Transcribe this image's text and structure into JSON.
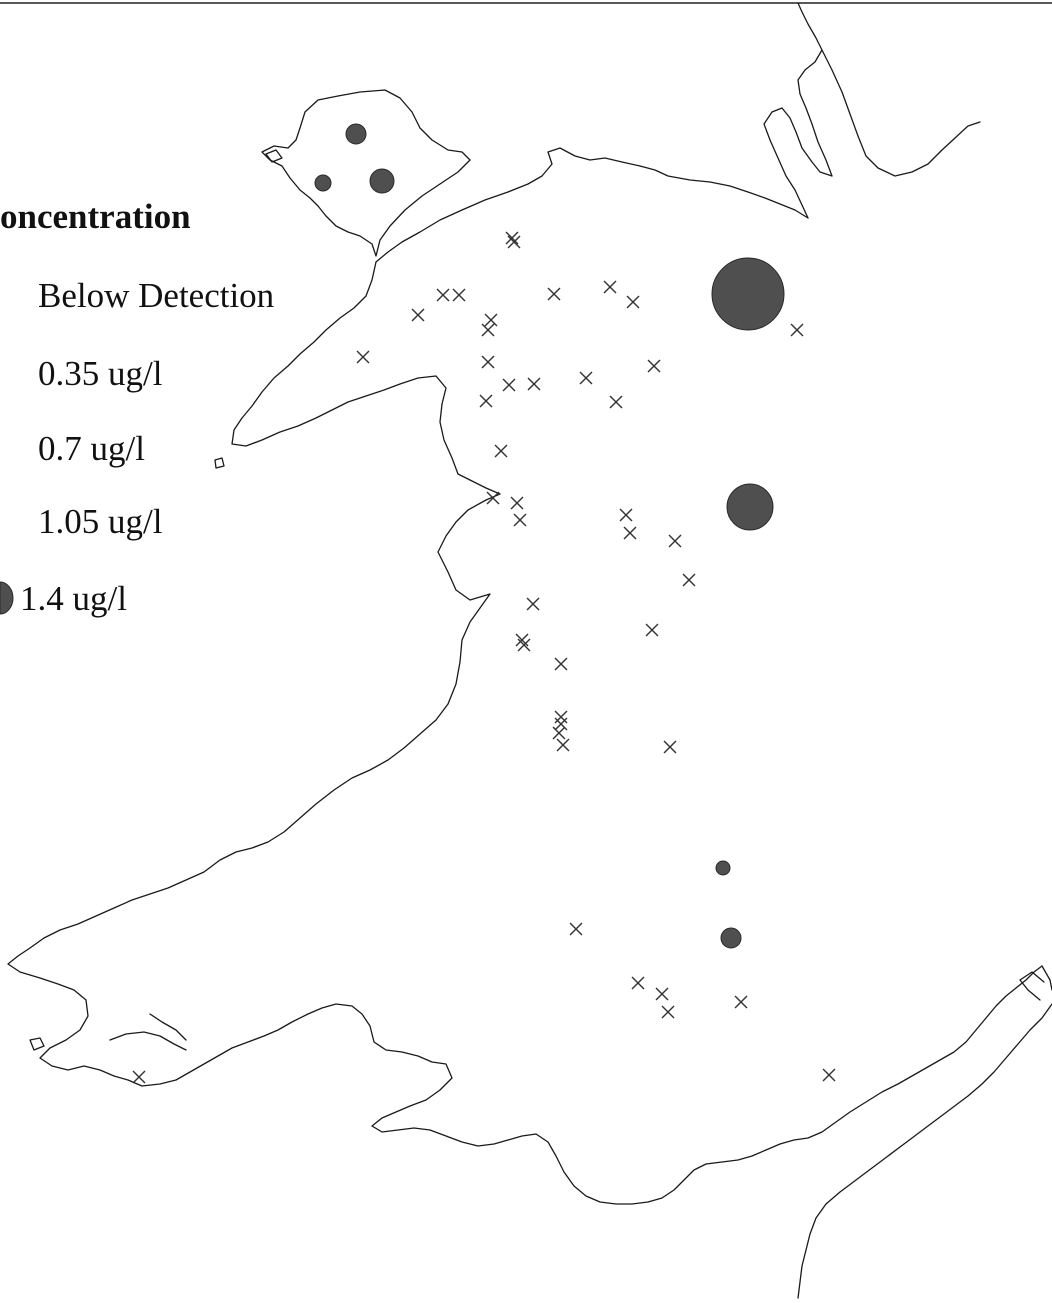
{
  "legend": {
    "title": "oncentration",
    "items": [
      {
        "label": "Below Detection",
        "symbol": "cross"
      },
      {
        "label": "0.35  ug/l",
        "symbol": "circle",
        "value": 0.35
      },
      {
        "label": "0.7  ug/l",
        "symbol": "circle",
        "value": 0.7
      },
      {
        "label": "1.05  ug/l",
        "symbol": "circle",
        "value": 1.05
      },
      {
        "label": "1.4  ug/l",
        "symbol": "circle",
        "value": 1.4
      }
    ]
  },
  "colors": {
    "marker_fill": "#4f4f4f",
    "coastline": "#1a1a1a",
    "background": "#ffffff"
  }
}
